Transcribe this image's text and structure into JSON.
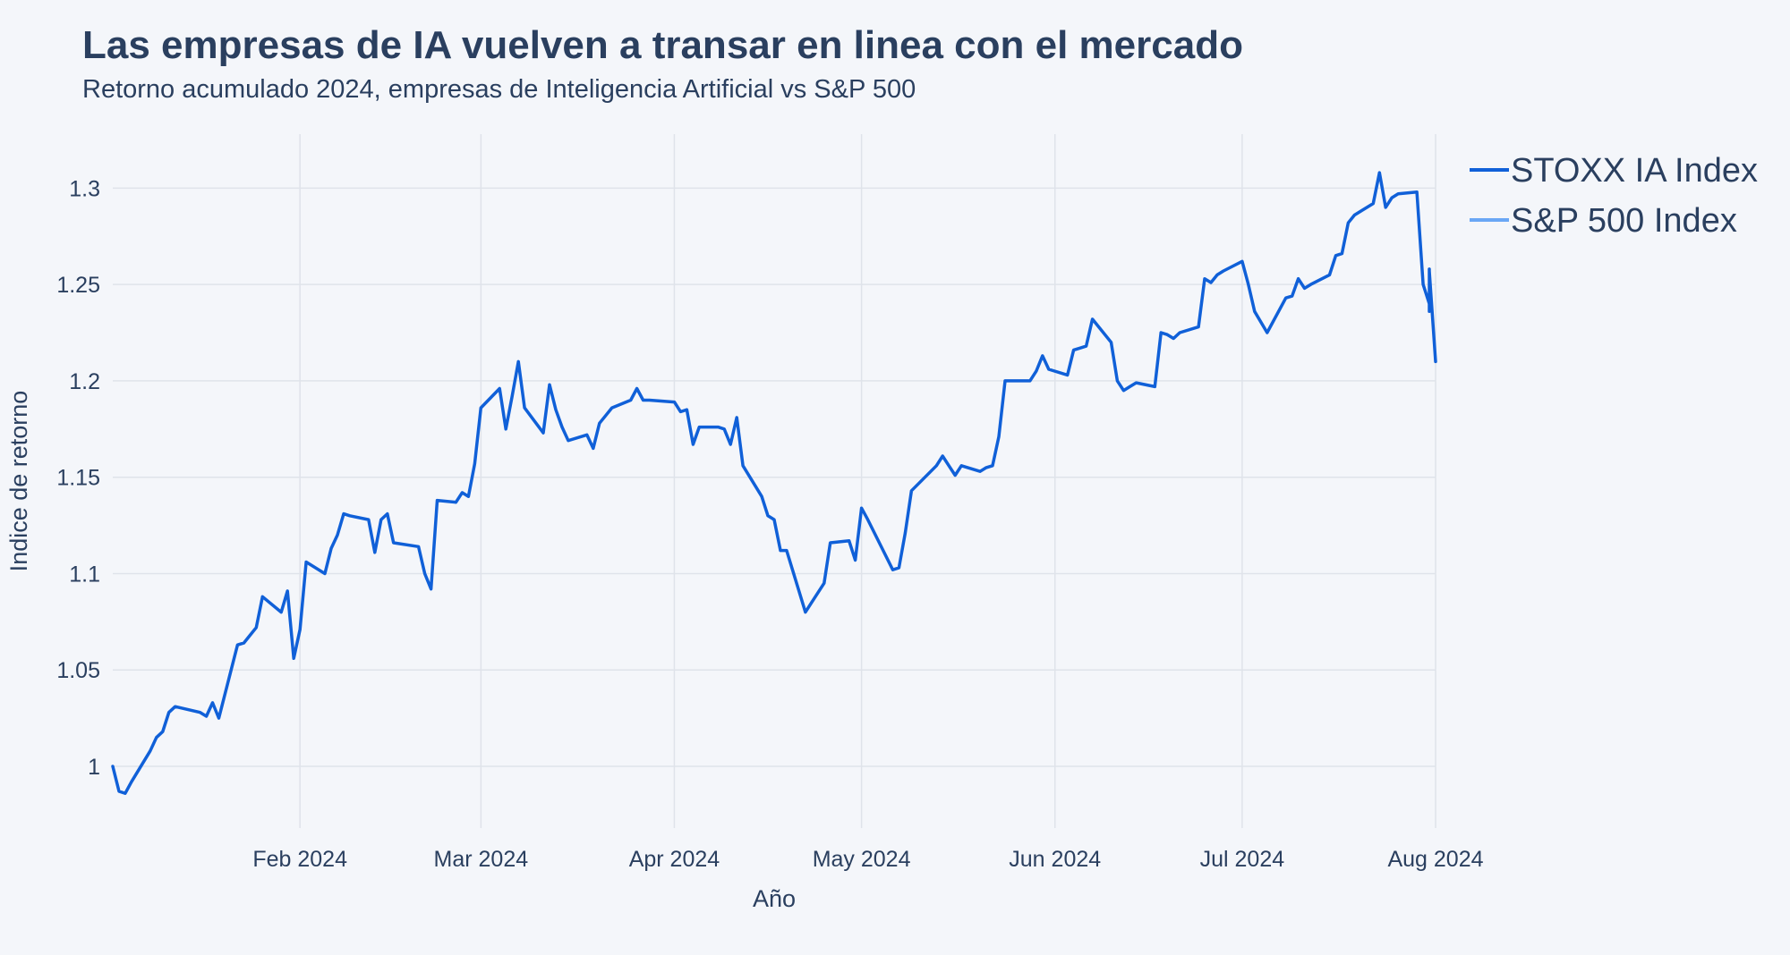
{
  "header": {
    "title": "Las empresas de IA vuelven a transar en linea con el mercado",
    "subtitle": "Retorno acumulado 2024, empresas de Inteligencia Artificial vs S&P 500"
  },
  "colors": {
    "background": "#f4f6fa",
    "grid": "#dfe3ea",
    "text": "#2a3f5f",
    "stoxx": "#1060d8",
    "sp500": "#6aa7f5"
  },
  "chart_data": {
    "type": "line",
    "xlabel": "Año",
    "ylabel": "Indice de retorno",
    "xlim": [
      "2024-01-02",
      "2024-08-01"
    ],
    "ylim": [
      0.968,
      1.328
    ],
    "x_ticks": [
      {
        "date": "2024-02-01",
        "label": "Feb 2024"
      },
      {
        "date": "2024-03-01",
        "label": "Mar 2024"
      },
      {
        "date": "2024-04-01",
        "label": "Apr 2024"
      },
      {
        "date": "2024-05-01",
        "label": "May 2024"
      },
      {
        "date": "2024-06-01",
        "label": "Jun 2024"
      },
      {
        "date": "2024-07-01",
        "label": "Jul 2024"
      },
      {
        "date": "2024-08-01",
        "label": "Aug 2024"
      }
    ],
    "y_ticks": [
      1,
      1.05,
      1.1,
      1.15,
      1.2,
      1.25,
      1.3
    ],
    "y_tick_labels": [
      "1",
      "1.05",
      "1.1",
      "1.15",
      "1.2",
      "1.25",
      "1.3"
    ],
    "grid": true,
    "legend_position": "top-right",
    "series": [
      {
        "name": "STOXX IA Index",
        "color": "#1060d8",
        "points": [
          [
            "2024-01-02",
            1.0
          ],
          [
            "2024-01-03",
            0.987
          ],
          [
            "2024-01-04",
            0.986
          ],
          [
            "2024-01-05",
            0.992
          ],
          [
            "2024-01-08",
            1.008
          ],
          [
            "2024-01-09",
            1.015
          ],
          [
            "2024-01-10",
            1.018
          ],
          [
            "2024-01-11",
            1.028
          ],
          [
            "2024-01-12",
            1.031
          ],
          [
            "2024-01-16",
            1.028
          ],
          [
            "2024-01-17",
            1.026
          ],
          [
            "2024-01-18",
            1.033
          ],
          [
            "2024-01-19",
            1.025
          ],
          [
            "2024-01-22",
            1.063
          ],
          [
            "2024-01-23",
            1.064
          ],
          [
            "2024-01-24",
            1.068
          ],
          [
            "2024-01-25",
            1.072
          ],
          [
            "2024-01-26",
            1.088
          ],
          [
            "2024-01-29",
            1.08
          ],
          [
            "2024-01-30",
            1.091
          ],
          [
            "2024-01-31",
            1.056
          ],
          [
            "2024-02-01",
            1.071
          ],
          [
            "2024-02-02",
            1.106
          ],
          [
            "2024-02-05",
            1.1
          ],
          [
            "2024-02-06",
            1.113
          ],
          [
            "2024-02-07",
            1.12
          ],
          [
            "2024-02-08",
            1.131
          ],
          [
            "2024-02-09",
            1.13
          ],
          [
            "2024-02-12",
            1.128
          ],
          [
            "2024-02-13",
            1.111
          ],
          [
            "2024-02-14",
            1.128
          ],
          [
            "2024-02-15",
            1.131
          ],
          [
            "2024-02-16",
            1.116
          ],
          [
            "2024-02-20",
            1.114
          ],
          [
            "2024-02-21",
            1.1
          ],
          [
            "2024-02-22",
            1.092
          ],
          [
            "2024-02-23",
            1.138
          ],
          [
            "2024-02-26",
            1.137
          ],
          [
            "2024-02-27",
            1.142
          ],
          [
            "2024-02-28",
            1.14
          ],
          [
            "2024-02-29",
            1.157
          ],
          [
            "2024-03-01",
            1.186
          ],
          [
            "2024-03-04",
            1.196
          ],
          [
            "2024-03-05",
            1.175
          ],
          [
            "2024-03-06",
            1.192
          ],
          [
            "2024-03-07",
            1.21
          ],
          [
            "2024-03-08",
            1.186
          ],
          [
            "2024-03-11",
            1.173
          ],
          [
            "2024-03-12",
            1.198
          ],
          [
            "2024-03-13",
            1.185
          ],
          [
            "2024-03-14",
            1.176
          ],
          [
            "2024-03-15",
            1.169
          ],
          [
            "2024-03-18",
            1.172
          ],
          [
            "2024-03-19",
            1.165
          ],
          [
            "2024-03-20",
            1.178
          ],
          [
            "2024-03-21",
            1.182
          ],
          [
            "2024-03-22",
            1.186
          ],
          [
            "2024-03-25",
            1.19
          ],
          [
            "2024-03-26",
            1.196
          ],
          [
            "2024-03-27",
            1.19
          ],
          [
            "2024-03-28",
            1.19
          ],
          [
            "2024-04-01",
            1.189
          ],
          [
            "2024-04-02",
            1.184
          ],
          [
            "2024-04-03",
            1.185
          ],
          [
            "2024-04-04",
            1.167
          ],
          [
            "2024-04-05",
            1.176
          ],
          [
            "2024-04-08",
            1.176
          ],
          [
            "2024-04-09",
            1.175
          ],
          [
            "2024-04-10",
            1.167
          ],
          [
            "2024-04-11",
            1.181
          ],
          [
            "2024-04-12",
            1.156
          ],
          [
            "2024-04-15",
            1.14
          ],
          [
            "2024-04-16",
            1.13
          ],
          [
            "2024-04-17",
            1.128
          ],
          [
            "2024-04-18",
            1.112
          ],
          [
            "2024-04-19",
            1.112
          ],
          [
            "2024-04-22",
            1.08
          ],
          [
            "2024-04-23",
            1.085
          ],
          [
            "2024-04-25",
            1.095
          ],
          [
            "2024-04-26",
            1.116
          ],
          [
            "2024-04-29",
            1.117
          ],
          [
            "2024-04-30",
            1.107
          ],
          [
            "2024-05-01",
            1.134
          ],
          [
            "2024-05-02",
            1.128
          ],
          [
            "2024-05-06",
            1.102
          ],
          [
            "2024-05-07",
            1.103
          ],
          [
            "2024-05-08",
            1.121
          ],
          [
            "2024-05-09",
            1.143
          ],
          [
            "2024-05-13",
            1.156
          ],
          [
            "2024-05-14",
            1.161
          ],
          [
            "2024-05-15",
            1.156
          ],
          [
            "2024-05-16",
            1.151
          ],
          [
            "2024-05-17",
            1.156
          ],
          [
            "2024-05-20",
            1.153
          ],
          [
            "2024-05-21",
            1.155
          ],
          [
            "2024-05-22",
            1.156
          ],
          [
            "2024-05-23",
            1.171
          ],
          [
            "2024-05-24",
            1.2
          ],
          [
            "2024-05-28",
            1.2
          ],
          [
            "2024-05-29",
            1.205
          ],
          [
            "2024-05-30",
            1.213
          ],
          [
            "2024-05-31",
            1.206
          ],
          [
            "2024-06-03",
            1.203
          ],
          [
            "2024-06-04",
            1.216
          ],
          [
            "2024-06-05",
            1.217
          ],
          [
            "2024-06-06",
            1.218
          ],
          [
            "2024-06-07",
            1.232
          ],
          [
            "2024-06-10",
            1.22
          ],
          [
            "2024-06-11",
            1.2
          ],
          [
            "2024-06-12",
            1.195
          ],
          [
            "2024-06-13",
            1.197
          ],
          [
            "2024-06-14",
            1.199
          ],
          [
            "2024-06-17",
            1.197
          ],
          [
            "2024-06-18",
            1.225
          ],
          [
            "2024-06-19",
            1.224
          ],
          [
            "2024-06-20",
            1.222
          ],
          [
            "2024-06-21",
            1.225
          ],
          [
            "2024-06-24",
            1.228
          ],
          [
            "2024-06-25",
            1.253
          ],
          [
            "2024-06-26",
            1.251
          ],
          [
            "2024-06-27",
            1.255
          ],
          [
            "2024-06-28",
            1.257
          ],
          [
            "2024-07-01",
            1.262
          ],
          [
            "2024-07-02",
            1.25
          ],
          [
            "2024-07-03",
            1.236
          ],
          [
            "2024-07-05",
            1.225
          ],
          [
            "2024-07-08",
            1.243
          ],
          [
            "2024-07-09",
            1.244
          ],
          [
            "2024-07-10",
            1.253
          ],
          [
            "2024-07-11",
            1.248
          ],
          [
            "2024-07-12",
            1.25
          ],
          [
            "2024-07-15",
            1.255
          ],
          [
            "2024-07-16",
            1.265
          ],
          [
            "2024-07-17",
            1.266
          ],
          [
            "2024-07-18",
            1.282
          ],
          [
            "2024-07-19",
            1.286
          ],
          [
            "2024-07-22",
            1.292
          ],
          [
            "2024-07-23",
            1.308
          ],
          [
            "2024-07-24",
            1.29
          ],
          [
            "2024-07-25",
            1.295
          ],
          [
            "2024-07-26",
            1.297
          ],
          [
            "2024-07-29",
            1.298
          ],
          [
            "2024-07-30",
            1.25
          ],
          [
            "2024-07-31",
            1.24
          ],
          [
            "2024-07-31",
            1.236
          ],
          [
            "2024-07-31",
            1.246
          ],
          [
            "2024-07-31",
            1.258
          ],
          [
            "2024-07-31",
            1.257
          ],
          [
            "2024-08-01",
            1.21
          ]
        ]
      },
      {
        "name": "S&P 500 Index",
        "color": "#6aa7f5",
        "points": []
      }
    ]
  },
  "legend": {
    "items": [
      {
        "label": "STOXX IA Index",
        "color": "#1060d8"
      },
      {
        "label": "S&P 500 Index",
        "color": "#6aa7f5"
      }
    ]
  }
}
